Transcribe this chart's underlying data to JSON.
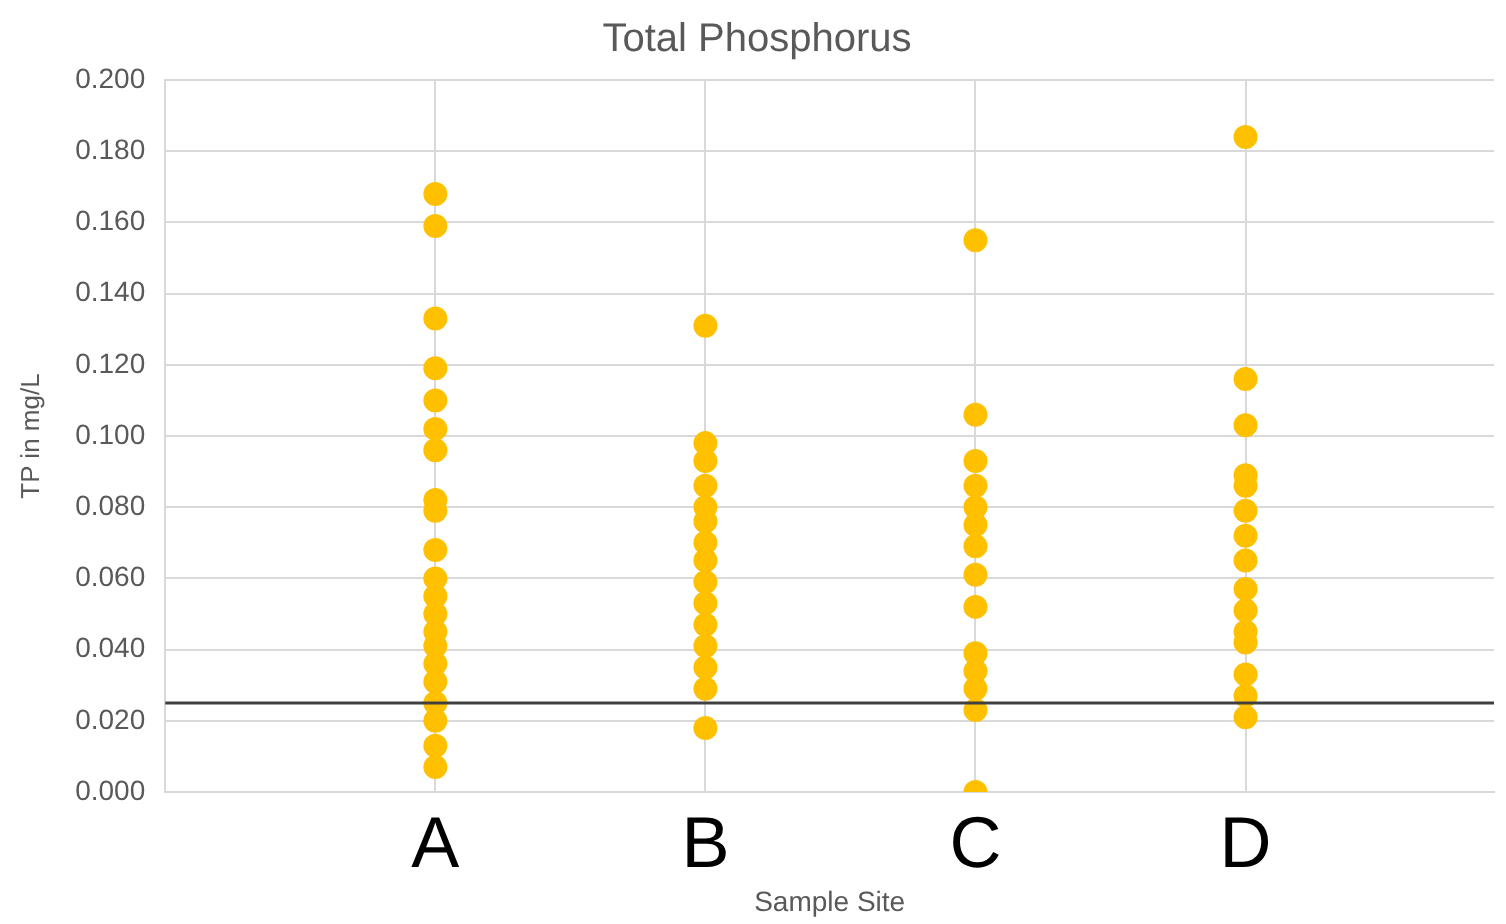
{
  "chart_data": {
    "type": "scatter",
    "title": "Total Phosphorus",
    "xlabel": "Sample Site",
    "ylabel": "TP in mg/L",
    "categories": [
      "A",
      "B",
      "C",
      "D"
    ],
    "series": [
      {
        "color": "#ffc000",
        "x": [
          "A",
          "A",
          "A",
          "A",
          "A",
          "A",
          "A",
          "A",
          "A",
          "A",
          "A",
          "A",
          "A",
          "A",
          "A",
          "A",
          "A",
          "A",
          "A",
          "A",
          "A",
          "B",
          "B",
          "B",
          "B",
          "B",
          "B",
          "B",
          "B",
          "B",
          "B",
          "B",
          "B",
          "B",
          "B",
          "B",
          "C",
          "C",
          "C",
          "C",
          "C",
          "C",
          "C",
          "C",
          "C",
          "C",
          "C",
          "C",
          "C",
          "C",
          "D",
          "D",
          "D",
          "D",
          "D",
          "D",
          "D",
          "D",
          "D",
          "D",
          "D",
          "D",
          "D",
          "D",
          "D"
        ],
        "values": [
          0.168,
          0.159,
          0.133,
          0.119,
          0.11,
          0.102,
          0.096,
          0.082,
          0.079,
          0.068,
          0.06,
          0.055,
          0.05,
          0.045,
          0.041,
          0.036,
          0.031,
          0.025,
          0.02,
          0.013,
          0.007,
          0.131,
          0.098,
          0.093,
          0.086,
          0.08,
          0.076,
          0.07,
          0.065,
          0.059,
          0.053,
          0.047,
          0.041,
          0.035,
          0.029,
          0.018,
          0.155,
          0.106,
          0.093,
          0.086,
          0.08,
          0.075,
          0.069,
          0.061,
          0.052,
          0.039,
          0.034,
          0.029,
          0.023,
          0.0,
          0.184,
          0.116,
          0.103,
          0.089,
          0.086,
          0.079,
          0.072,
          0.065,
          0.057,
          0.051,
          0.045,
          0.042,
          0.033,
          0.027,
          0.021
        ]
      }
    ],
    "ylim": [
      0,
      0.2
    ],
    "yticks": [
      {
        "value": 0,
        "label": "0.000"
      },
      {
        "value": 0.02,
        "label": "0.020"
      },
      {
        "value": 0.04,
        "label": "0.040"
      },
      {
        "value": 0.06,
        "label": "0.060"
      },
      {
        "value": 0.08,
        "label": "0.080"
      },
      {
        "value": 0.1,
        "label": "0.100"
      },
      {
        "value": 0.12,
        "label": "0.120"
      },
      {
        "value": 0.14,
        "label": "0.140"
      },
      {
        "value": 0.16,
        "label": "0.160"
      },
      {
        "value": 0.18,
        "label": "0.180"
      },
      {
        "value": 0.2,
        "label": "0.200"
      }
    ],
    "ref_lines": [
      {
        "axis": "y",
        "value": 0.025,
        "color": "#404040"
      }
    ],
    "grid": true,
    "marker": "circle",
    "legend": false
  }
}
